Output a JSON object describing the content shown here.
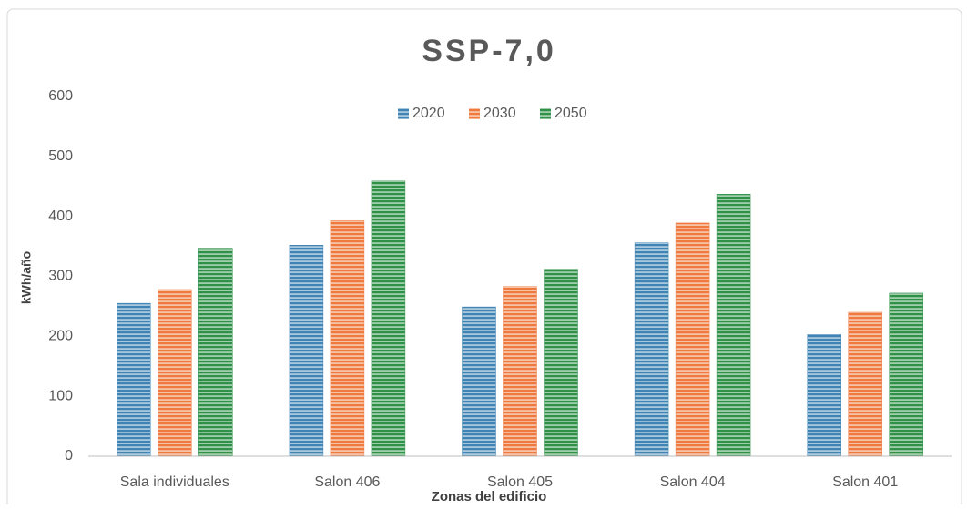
{
  "chart_data": {
    "type": "bar",
    "title": "SSP-7,0",
    "x_label": "Zonas del edificio",
    "y_label": "kWh/año",
    "categories": [
      "Sala individuales",
      "Salon 406",
      "Salon 405",
      "Salon 404",
      "Salon 401"
    ],
    "series": [
      {
        "name": "2020",
        "color": "#3f84b4",
        "values": [
          255,
          352,
          249,
          356,
          203
        ]
      },
      {
        "name": "2030",
        "color": "#ee7a3e",
        "values": [
          278,
          393,
          283,
          389,
          240
        ]
      },
      {
        "name": "2050",
        "color": "#2f9148",
        "values": [
          347,
          459,
          312,
          437,
          272
        ]
      }
    ],
    "ylim": [
      0,
      600
    ],
    "yticks": [
      0,
      100,
      200,
      300,
      400,
      500,
      600
    ],
    "grid": false,
    "legend": "top"
  }
}
